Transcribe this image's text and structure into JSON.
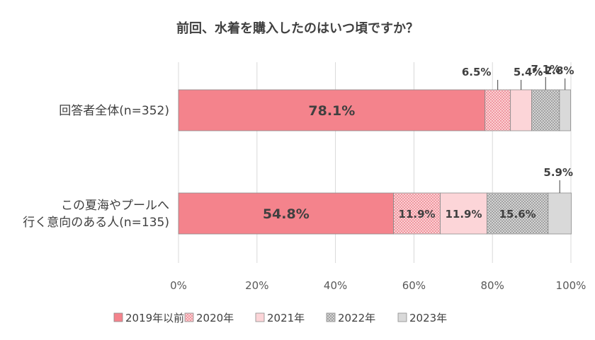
{
  "chart_data": {
    "type": "bar",
    "orientation": "horizontal",
    "stacked": true,
    "title": "前回、水着を購入したのはいつ頃ですか？",
    "categories": [
      [
        "回答者全体(n=352)"
      ],
      [
        "この夏海やプールへ",
        "行く意向のある人(n=135)"
      ]
    ],
    "series": [
      {
        "name": "2019年以前",
        "values": [
          78.1,
          54.8
        ],
        "labels": [
          "78.1%",
          "54.8%"
        ],
        "color": "#f4838c",
        "pattern": "solid"
      },
      {
        "name": "2020年",
        "values": [
          6.5,
          11.9
        ],
        "labels": [
          "6.5%",
          "11.9%"
        ],
        "color": "#f4838c",
        "pattern": "dots-red"
      },
      {
        "name": "2021年",
        "values": [
          5.4,
          11.9
        ],
        "labels": [
          "5.4%",
          "11.9%"
        ],
        "color": "#fcd5d8",
        "pattern": "solid-pink"
      },
      {
        "name": "2022年",
        "values": [
          7.1,
          15.6
        ],
        "labels": [
          "7.1%",
          "15.6%"
        ],
        "color": "#a6a6a6",
        "pattern": "dots-gray"
      },
      {
        "name": "2023年",
        "values": [
          2.8,
          5.9
        ],
        "labels": [
          "2.8%",
          "5.9%"
        ],
        "color": "#d9d9d9",
        "pattern": "solid-gray"
      }
    ],
    "x_ticks": [
      "0%",
      "20%",
      "40%",
      "60%",
      "80%",
      "100%"
    ],
    "xlim": [
      0,
      100
    ],
    "grid": true,
    "legend": "bottom"
  }
}
